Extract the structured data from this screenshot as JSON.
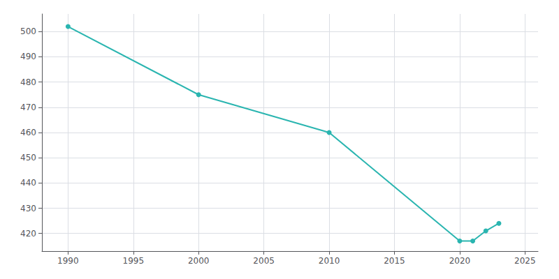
{
  "chart_data": {
    "type": "line",
    "x": [
      1990,
      2000,
      2010,
      2020,
      2021,
      2022,
      2023
    ],
    "values": [
      502,
      475,
      460,
      417,
      417,
      421,
      424
    ],
    "color": "#2ab5b0",
    "marker": "circle",
    "xlim": [
      1988,
      2026
    ],
    "ylim": [
      413,
      507
    ],
    "xticks": [
      1990,
      1995,
      2000,
      2005,
      2010,
      2015,
      2020,
      2025
    ],
    "yticks": [
      420,
      430,
      440,
      450,
      460,
      470,
      480,
      490,
      500
    ],
    "grid": true
  }
}
